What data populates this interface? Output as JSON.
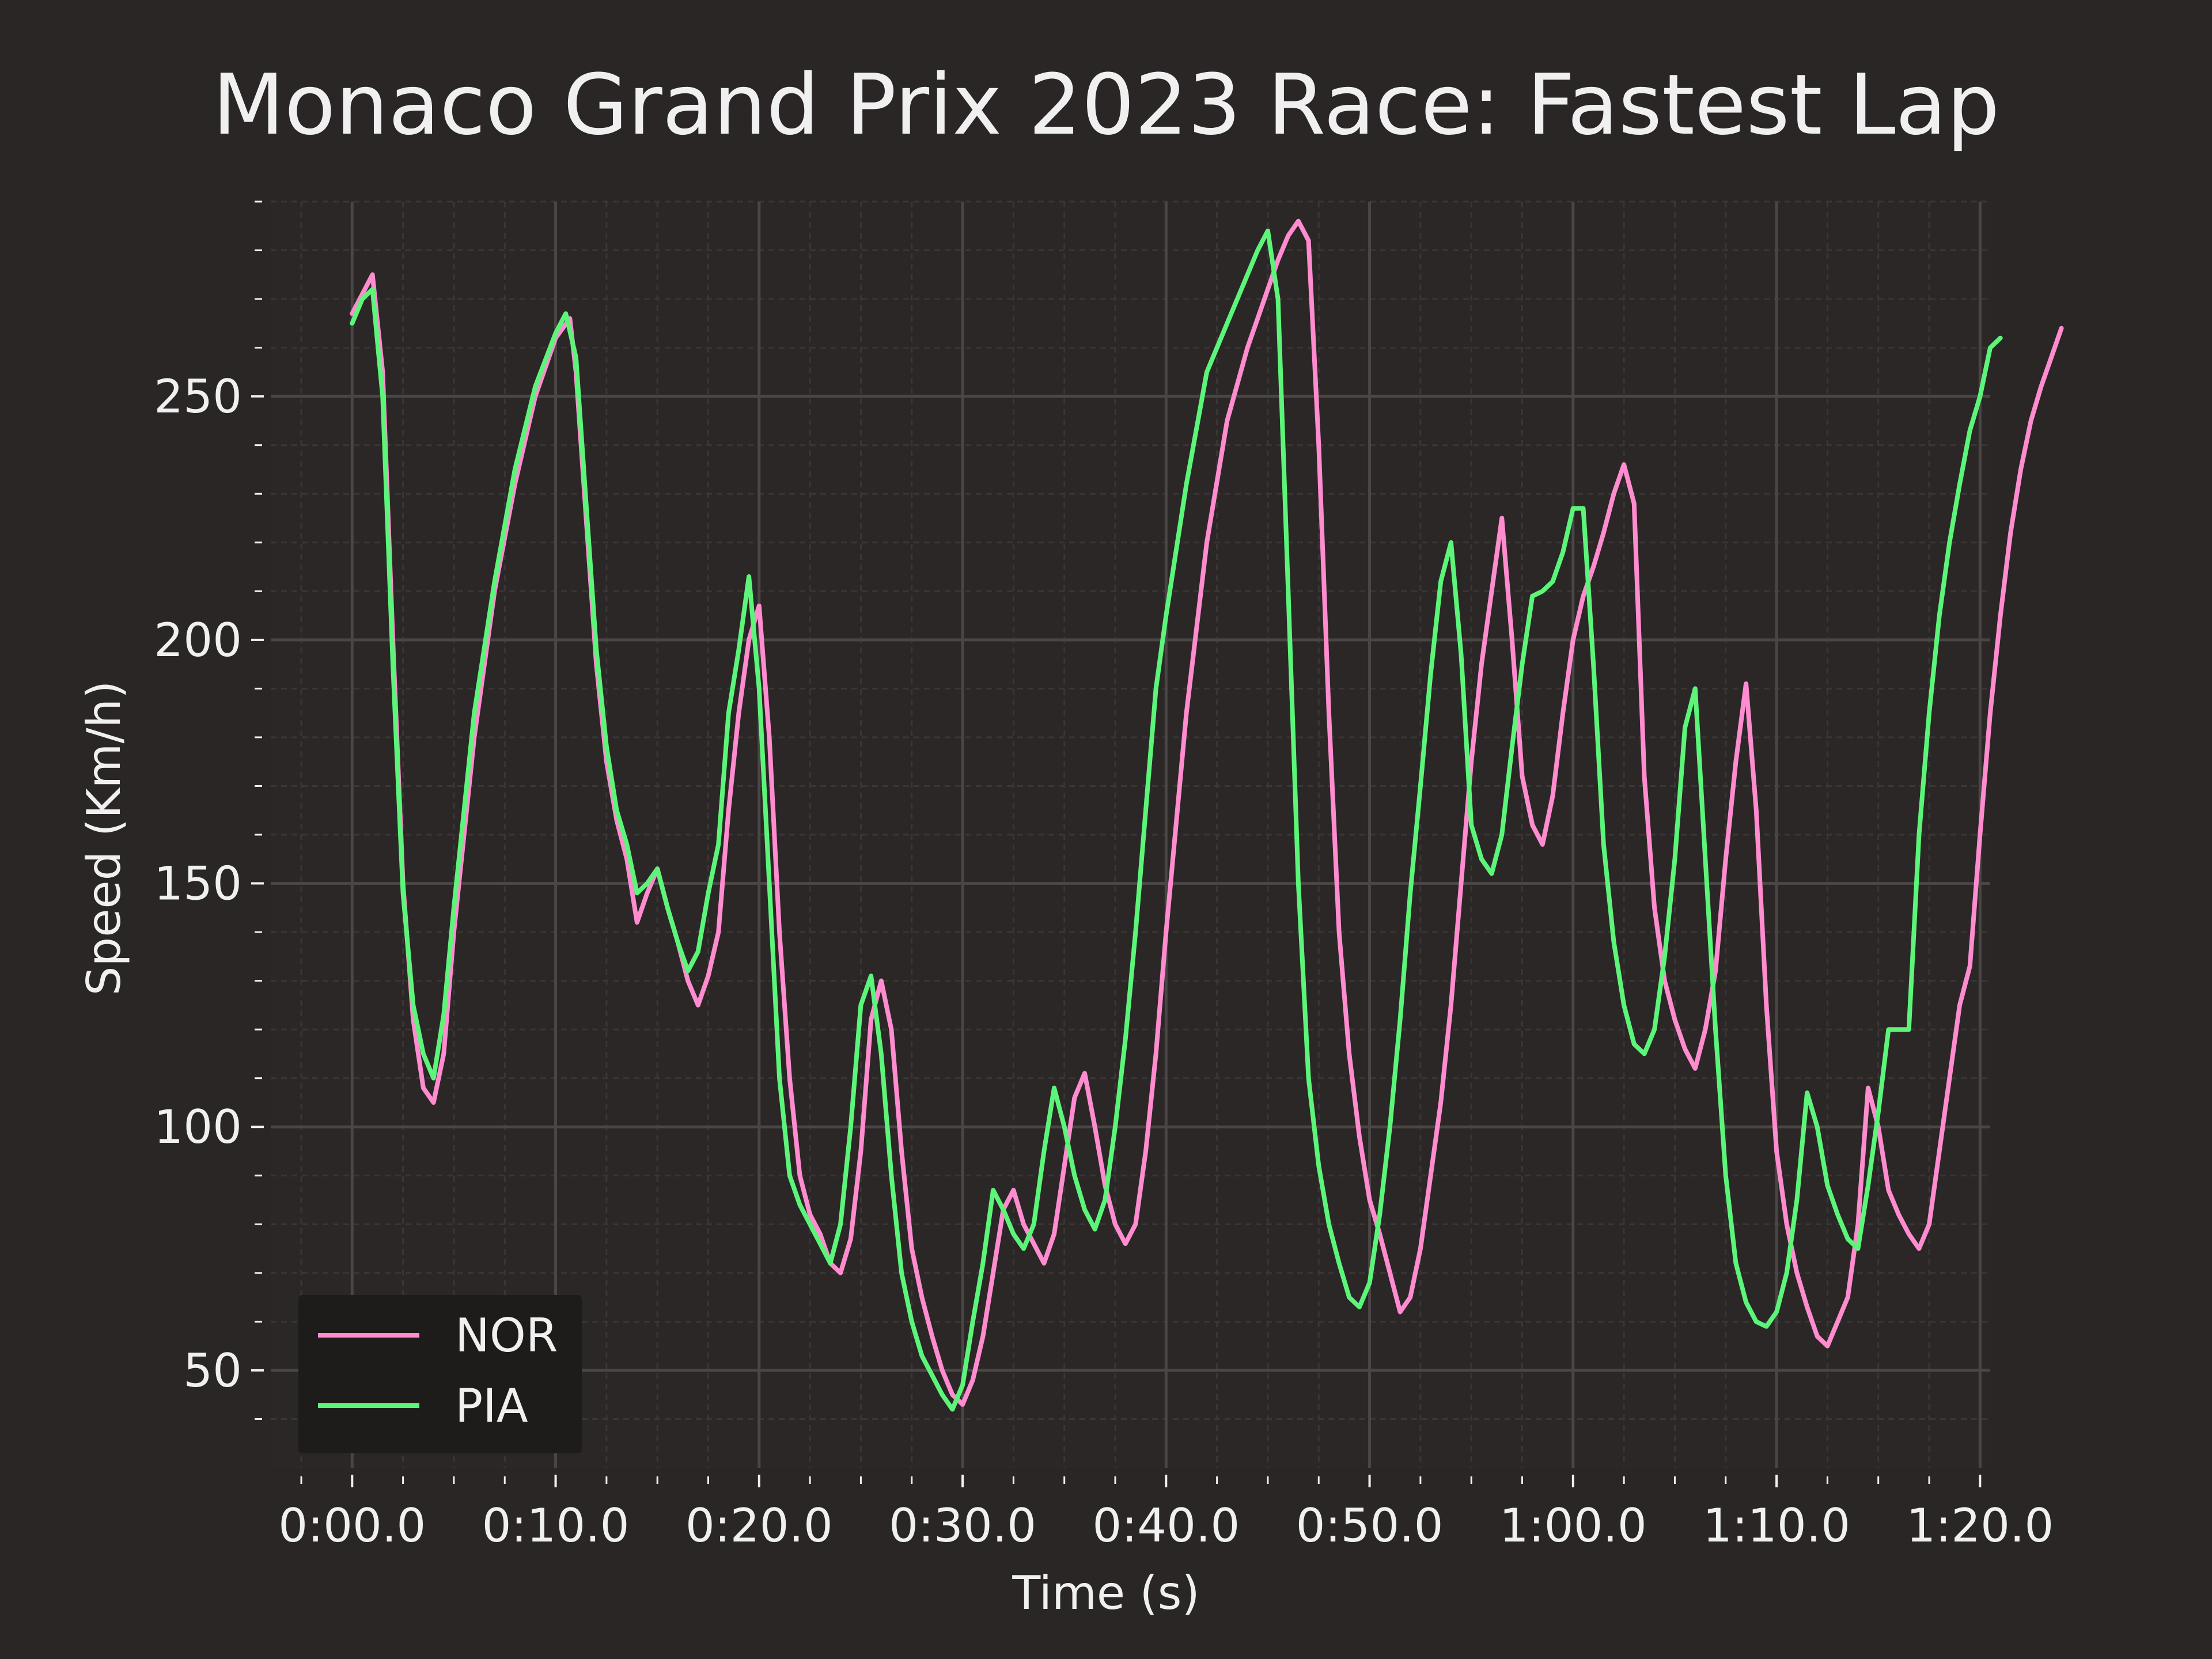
{
  "colors": {
    "background": "#292625",
    "plot_background": "#2a2726",
    "grid_major": "#4a4645",
    "grid_minor": "#3a3635",
    "text": "#f0f0f0",
    "legend_background": "#1e1c1b"
  },
  "chart_data": {
    "type": "line",
    "title": "Monaco Grand Prix 2023 Race: Fastest Lap",
    "xlabel": "Time (s)",
    "ylabel": "Speed (Km/h)",
    "xlim": [
      -4,
      80.5
    ],
    "ylim": [
      30,
      290
    ],
    "xticks": [
      0,
      10,
      20,
      30,
      40,
      50,
      60,
      70,
      80
    ],
    "xtick_labels": [
      "0:00.0",
      "0:10.0",
      "0:20.0",
      "0:30.0",
      "0:40.0",
      "0:50.0",
      "1:00.0",
      "1:10.0",
      "1:20.0"
    ],
    "yticks": [
      50,
      100,
      150,
      200,
      250
    ],
    "ytick_labels": [
      "50",
      "100",
      "150",
      "200",
      "250"
    ],
    "grid": true,
    "legend_position": "lower-left",
    "series": [
      {
        "name": "NOR",
        "color": "#ff8ccf",
        "points": [
          [
            0,
            267
          ],
          [
            0.5,
            271
          ],
          [
            1,
            275
          ],
          [
            1.5,
            255
          ],
          [
            2,
            200
          ],
          [
            2.5,
            150
          ],
          [
            3,
            122
          ],
          [
            3.5,
            108
          ],
          [
            4,
            105
          ],
          [
            4.5,
            115
          ],
          [
            5,
            140
          ],
          [
            6,
            180
          ],
          [
            7,
            210
          ],
          [
            8,
            232
          ],
          [
            9,
            250
          ],
          [
            10,
            262
          ],
          [
            10.7,
            266
          ],
          [
            11,
            255
          ],
          [
            11.5,
            225
          ],
          [
            12,
            195
          ],
          [
            12.5,
            175
          ],
          [
            13,
            163
          ],
          [
            13.5,
            155
          ],
          [
            14,
            142
          ],
          [
            14.5,
            148
          ],
          [
            15,
            153
          ],
          [
            15.5,
            145
          ],
          [
            16,
            138
          ],
          [
            16.5,
            130
          ],
          [
            17,
            125
          ],
          [
            17.5,
            131
          ],
          [
            18,
            140
          ],
          [
            18.5,
            165
          ],
          [
            19,
            185
          ],
          [
            19.5,
            200
          ],
          [
            20,
            207
          ],
          [
            20.5,
            180
          ],
          [
            21,
            140
          ],
          [
            21.5,
            110
          ],
          [
            22,
            90
          ],
          [
            22.5,
            82
          ],
          [
            23,
            78
          ],
          [
            23.5,
            72
          ],
          [
            24,
            70
          ],
          [
            24.5,
            77
          ],
          [
            25,
            95
          ],
          [
            25.5,
            122
          ],
          [
            26,
            130
          ],
          [
            26.5,
            120
          ],
          [
            27,
            95
          ],
          [
            27.5,
            75
          ],
          [
            28,
            65
          ],
          [
            28.5,
            57
          ],
          [
            29,
            50
          ],
          [
            29.5,
            45
          ],
          [
            30,
            43
          ],
          [
            30.5,
            48
          ],
          [
            31,
            57
          ],
          [
            31.5,
            70
          ],
          [
            32,
            83
          ],
          [
            32.5,
            87
          ],
          [
            33,
            80
          ],
          [
            33.5,
            76
          ],
          [
            34,
            72
          ],
          [
            34.5,
            78
          ],
          [
            35,
            92
          ],
          [
            35.5,
            106
          ],
          [
            36,
            111
          ],
          [
            36.5,
            100
          ],
          [
            37,
            88
          ],
          [
            37.5,
            80
          ],
          [
            38,
            76
          ],
          [
            38.5,
            80
          ],
          [
            39,
            95
          ],
          [
            39.5,
            115
          ],
          [
            40,
            140
          ],
          [
            41,
            185
          ],
          [
            42,
            220
          ],
          [
            43,
            245
          ],
          [
            44,
            260
          ],
          [
            44.5,
            266
          ],
          [
            45,
            272
          ],
          [
            45.5,
            278
          ],
          [
            46,
            283
          ],
          [
            46.5,
            286
          ],
          [
            47,
            282
          ],
          [
            47.5,
            240
          ],
          [
            48,
            185
          ],
          [
            48.5,
            140
          ],
          [
            49,
            115
          ],
          [
            49.5,
            98
          ],
          [
            50,
            85
          ],
          [
            50.5,
            78
          ],
          [
            51,
            70
          ],
          [
            51.5,
            62
          ],
          [
            52,
            65
          ],
          [
            52.5,
            75
          ],
          [
            53,
            90
          ],
          [
            53.5,
            105
          ],
          [
            54,
            125
          ],
          [
            54.5,
            150
          ],
          [
            55,
            175
          ],
          [
            55.5,
            195
          ],
          [
            56,
            210
          ],
          [
            56.5,
            225
          ],
          [
            57,
            200
          ],
          [
            57.5,
            172
          ],
          [
            58,
            162
          ],
          [
            58.5,
            158
          ],
          [
            59,
            168
          ],
          [
            59.5,
            185
          ],
          [
            60,
            200
          ],
          [
            60.5,
            209
          ],
          [
            61,
            215
          ],
          [
            61.5,
            222
          ],
          [
            62,
            230
          ],
          [
            62.5,
            236
          ],
          [
            63,
            228
          ],
          [
            63.5,
            172
          ],
          [
            64,
            145
          ],
          [
            64.5,
            130
          ],
          [
            65,
            122
          ],
          [
            65.5,
            116
          ],
          [
            66,
            112
          ],
          [
            66.5,
            120
          ],
          [
            67,
            132
          ],
          [
            67.5,
            155
          ],
          [
            68,
            175
          ],
          [
            68.5,
            191
          ],
          [
            69,
            165
          ],
          [
            69.5,
            125
          ],
          [
            70,
            95
          ],
          [
            70.5,
            80
          ],
          [
            71,
            70
          ],
          [
            71.5,
            63
          ],
          [
            72,
            57
          ],
          [
            72.5,
            55
          ],
          [
            73,
            60
          ],
          [
            73.5,
            65
          ],
          [
            74,
            80
          ],
          [
            74.5,
            108
          ],
          [
            75,
            100
          ],
          [
            75.5,
            87
          ],
          [
            76,
            82
          ],
          [
            76.5,
            78
          ],
          [
            77,
            75
          ],
          [
            77.5,
            80
          ],
          [
            78,
            95
          ],
          [
            78.5,
            110
          ],
          [
            79,
            125
          ],
          [
            79.5,
            133
          ],
          [
            80,
            160
          ],
          [
            80.5,
            185
          ],
          [
            81,
            205
          ],
          [
            81.5,
            222
          ],
          [
            82,
            235
          ],
          [
            82.5,
            245
          ],
          [
            83,
            252
          ],
          [
            83.5,
            258
          ],
          [
            84,
            264
          ]
        ]
      },
      {
        "name": "PIA",
        "color": "#5cf57a",
        "points": [
          [
            0,
            265
          ],
          [
            0.5,
            270
          ],
          [
            1,
            272
          ],
          [
            1.5,
            250
          ],
          [
            2,
            195
          ],
          [
            2.5,
            148
          ],
          [
            3,
            125
          ],
          [
            3.5,
            115
          ],
          [
            4,
            110
          ],
          [
            4.5,
            123
          ],
          [
            5,
            145
          ],
          [
            6,
            185
          ],
          [
            7,
            212
          ],
          [
            8,
            235
          ],
          [
            9,
            252
          ],
          [
            10,
            263
          ],
          [
            10.5,
            267
          ],
          [
            11,
            258
          ],
          [
            11.5,
            228
          ],
          [
            12,
            198
          ],
          [
            12.5,
            178
          ],
          [
            13,
            165
          ],
          [
            13.5,
            158
          ],
          [
            14,
            148
          ],
          [
            14.5,
            150
          ],
          [
            15,
            153
          ],
          [
            15.5,
            145
          ],
          [
            16,
            138
          ],
          [
            16.5,
            132
          ],
          [
            17,
            136
          ],
          [
            17.5,
            148
          ],
          [
            18,
            158
          ],
          [
            18.5,
            185
          ],
          [
            19,
            198
          ],
          [
            19.5,
            213
          ],
          [
            20,
            190
          ],
          [
            20.5,
            150
          ],
          [
            21,
            110
          ],
          [
            21.5,
            90
          ],
          [
            22,
            84
          ],
          [
            22.5,
            80
          ],
          [
            23,
            76
          ],
          [
            23.5,
            72
          ],
          [
            24,
            80
          ],
          [
            24.5,
            100
          ],
          [
            25,
            125
          ],
          [
            25.5,
            131
          ],
          [
            26,
            115
          ],
          [
            26.5,
            90
          ],
          [
            27,
            70
          ],
          [
            27.5,
            60
          ],
          [
            28,
            53
          ],
          [
            28.5,
            49
          ],
          [
            29,
            45
          ],
          [
            29.5,
            42
          ],
          [
            30,
            47
          ],
          [
            30.5,
            60
          ],
          [
            31,
            72
          ],
          [
            31.5,
            87
          ],
          [
            32,
            83
          ],
          [
            32.5,
            78
          ],
          [
            33,
            75
          ],
          [
            33.5,
            80
          ],
          [
            34,
            95
          ],
          [
            34.5,
            108
          ],
          [
            35,
            100
          ],
          [
            35.5,
            90
          ],
          [
            36,
            83
          ],
          [
            36.5,
            79
          ],
          [
            37,
            85
          ],
          [
            37.5,
            100
          ],
          [
            38,
            118
          ],
          [
            38.5,
            140
          ],
          [
            39,
            165
          ],
          [
            39.5,
            190
          ],
          [
            40,
            205
          ],
          [
            41,
            232
          ],
          [
            42,
            255
          ],
          [
            43,
            265
          ],
          [
            44,
            275
          ],
          [
            44.5,
            280
          ],
          [
            45,
            284
          ],
          [
            45.5,
            270
          ],
          [
            46,
            210
          ],
          [
            46.5,
            150
          ],
          [
            47,
            110
          ],
          [
            47.5,
            92
          ],
          [
            48,
            80
          ],
          [
            48.5,
            72
          ],
          [
            49,
            65
          ],
          [
            49.5,
            63
          ],
          [
            50,
            68
          ],
          [
            50.5,
            82
          ],
          [
            51,
            100
          ],
          [
            51.5,
            122
          ],
          [
            52,
            148
          ],
          [
            52.5,
            170
          ],
          [
            53,
            193
          ],
          [
            53.5,
            212
          ],
          [
            54,
            220
          ],
          [
            54.5,
            197
          ],
          [
            55,
            162
          ],
          [
            55.5,
            155
          ],
          [
            56,
            152
          ],
          [
            56.5,
            160
          ],
          [
            57,
            178
          ],
          [
            57.5,
            195
          ],
          [
            58,
            209
          ],
          [
            58.5,
            210
          ],
          [
            59,
            212
          ],
          [
            59.5,
            218
          ],
          [
            60,
            227
          ],
          [
            60.5,
            227
          ],
          [
            61,
            195
          ],
          [
            61.5,
            158
          ],
          [
            62,
            138
          ],
          [
            62.5,
            125
          ],
          [
            63,
            117
          ],
          [
            63.5,
            115
          ],
          [
            64,
            120
          ],
          [
            64.5,
            135
          ],
          [
            65,
            155
          ],
          [
            65.5,
            182
          ],
          [
            66,
            190
          ],
          [
            66.5,
            155
          ],
          [
            67,
            120
          ],
          [
            67.5,
            90
          ],
          [
            68,
            72
          ],
          [
            68.5,
            64
          ],
          [
            69,
            60
          ],
          [
            69.5,
            59
          ],
          [
            70,
            62
          ],
          [
            70.5,
            70
          ],
          [
            71,
            85
          ],
          [
            71.5,
            107
          ],
          [
            72,
            100
          ],
          [
            72.5,
            88
          ],
          [
            73,
            82
          ],
          [
            73.5,
            77
          ],
          [
            74,
            75
          ],
          [
            74.5,
            88
          ],
          [
            75,
            103
          ],
          [
            75.5,
            120
          ],
          [
            76,
            120
          ],
          [
            76.5,
            120
          ],
          [
            77,
            160
          ],
          [
            77.5,
            185
          ],
          [
            78,
            205
          ],
          [
            78.5,
            220
          ],
          [
            79,
            232
          ],
          [
            79.5,
            243
          ],
          [
            80,
            250
          ],
          [
            80.5,
            260
          ],
          [
            81,
            262
          ]
        ]
      }
    ]
  }
}
